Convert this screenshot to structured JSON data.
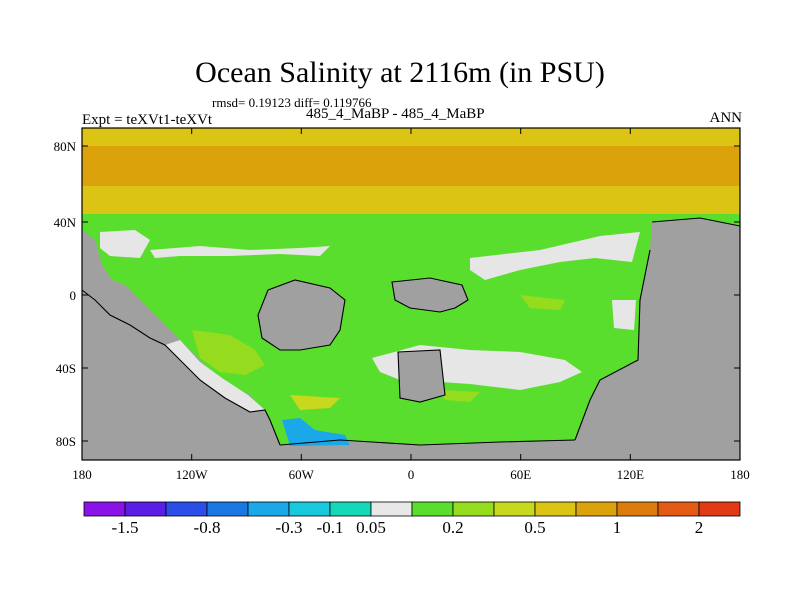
{
  "title": "Ocean Salinity at 2116m (in PSU)",
  "stats_line": "rmsd= 0.19123 diff= 0.119766",
  "experiment_label": "Expt = teXVt1-teXVt",
  "case_label": "485_4_MaBP - 485_4_MaBP",
  "season_label": "ANN",
  "axes": {
    "lat_ticks": [
      "80N",
      "40N",
      "0",
      "40S",
      "80S"
    ],
    "lon_ticks": [
      "180",
      "120W",
      "60W",
      "0",
      "60E",
      "120E",
      "180"
    ]
  },
  "colorbar": {
    "colors": [
      "#8a14e8",
      "#5a1ee6",
      "#2b4ee8",
      "#1a78e2",
      "#1aa8e8",
      "#18c8dc",
      "#14d8b8",
      "#e8e8e8",
      "#5ade2e",
      "#96dc1e",
      "#c8d81c",
      "#dcc414",
      "#dca20c",
      "#dc7c0c",
      "#e25a14",
      "#e23a14"
    ],
    "labels": [
      "-1.5",
      "-0.8",
      "-0.3",
      "-0.1",
      "0.05",
      "0.2",
      "0.5",
      "1",
      "2"
    ]
  },
  "map_colors": {
    "land": "#a0a0a0",
    "near_zero": "#e6e6e6",
    "small_positive": "#5ade2e",
    "light_green": "#96dc1e",
    "yellow_green": "#c8d81c",
    "arctic_orange": "#dca20c",
    "arctic_yellow": "#dcc414",
    "negative_cyan": "#1aa8e8"
  }
}
